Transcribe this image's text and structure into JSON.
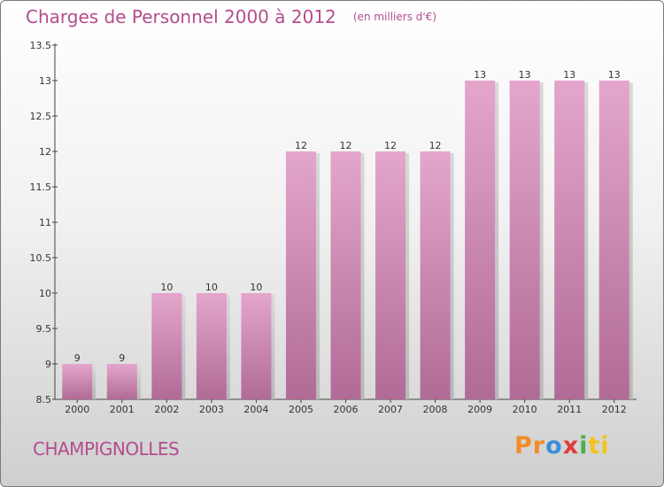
{
  "chart_data": {
    "type": "bar",
    "title": "Charges de Personnel 2000 à 2012",
    "subtitle": "(en milliers d'€)",
    "categories": [
      "2000",
      "2001",
      "2002",
      "2003",
      "2004",
      "2005",
      "2006",
      "2007",
      "2008",
      "2009",
      "2010",
      "2011",
      "2012"
    ],
    "values": [
      9,
      9,
      10,
      10,
      10,
      12,
      12,
      12,
      12,
      13,
      13,
      13,
      13
    ],
    "ylim": [
      8.5,
      13.5
    ],
    "yticks": [
      "8.5",
      "9",
      "9.5",
      "10",
      "10.5",
      "11",
      "11.5",
      "12",
      "12.5",
      "13",
      "13.5"
    ],
    "grid": false,
    "bar_color": "#c983ad"
  },
  "commune": "CHAMPIGNOLLES",
  "logo": "Proxiti",
  "colors": {
    "accent": "#b34d8c"
  }
}
